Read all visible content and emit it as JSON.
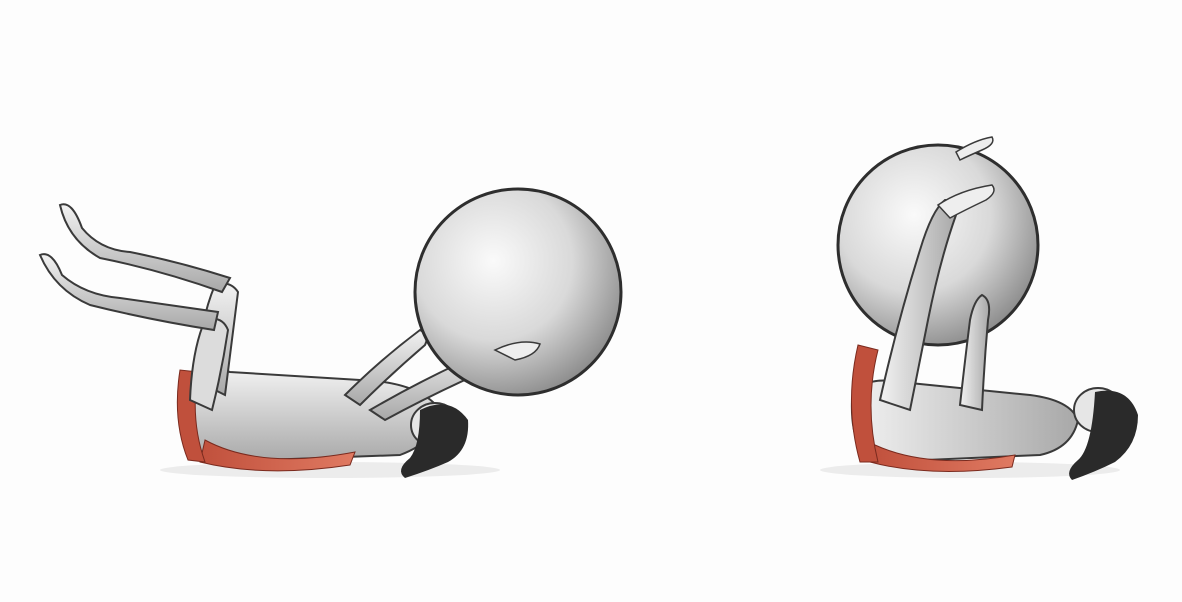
{
  "illustration": {
    "subject": "exercise-ball-pass",
    "frames": [
      {
        "pose": "start",
        "ball_held_by": "hands"
      },
      {
        "pose": "end",
        "ball_held_by": "hands-and-feet"
      }
    ],
    "colors": {
      "background": "#fdfdfd",
      "ball_light": "#fafafa",
      "ball_dark": "#8a8a8a",
      "ball_outline": "#2e2e2e",
      "body_light": "#eeeeee",
      "body_shade": "#9a9a9a",
      "body_outline": "#3a3a3a",
      "muscle_highlight": "#c0503c",
      "hair": "#2a2a2a"
    }
  }
}
